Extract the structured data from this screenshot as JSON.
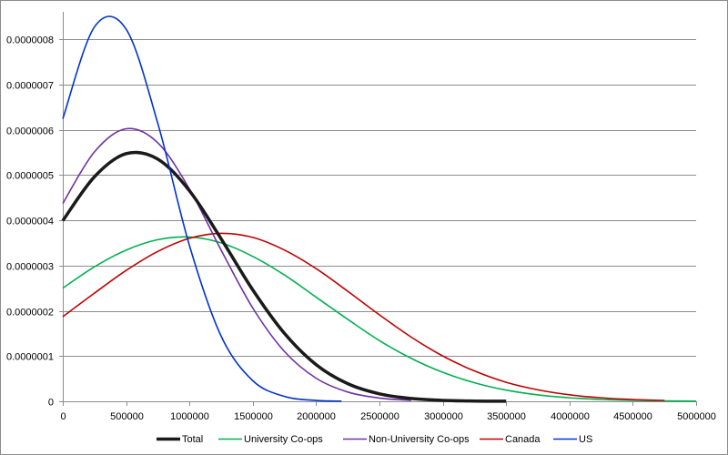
{
  "chart_data": {
    "type": "line",
    "title": "",
    "xlabel": "",
    "ylabel": "",
    "xlim": [
      0,
      5000000
    ],
    "ylim": [
      0,
      8e-07
    ],
    "x_ticks": [
      "0",
      "500000",
      "1000000",
      "1500000",
      "2000000",
      "2500000",
      "3000000",
      "3500000",
      "4000000",
      "4500000",
      "5000000"
    ],
    "y_ticks": [
      "0",
      "0.0000001",
      "0.0000002",
      "0.0000003",
      "0.0000004",
      "0.0000005",
      "0.0000006",
      "0.0000007",
      "0.0000008"
    ],
    "grid": "horizontal",
    "legend_position": "bottom",
    "series": [
      {
        "name": "Total",
        "color": "#1a1a1a",
        "x": [
          0,
          250000,
          500000,
          750000,
          1000000,
          1250000,
          1500000,
          1750000,
          2000000,
          2250000,
          2500000,
          2750000,
          3000000,
          3250000,
          3500000
        ],
        "y": [
          3.99e-07,
          4.96e-07,
          5.47e-07,
          5.35e-07,
          4.65e-07,
          3.59e-07,
          2.46e-07,
          1.5e-07,
          8.1e-08,
          3.89e-08,
          1.65e-08,
          6.3e-09,
          2.1e-09,
          6e-10,
          2e-10
        ]
      },
      {
        "name": "University Co-ops",
        "color": "#00b050",
        "x": [
          0,
          250000,
          500000,
          750000,
          1000000,
          1250000,
          1500000,
          1750000,
          2000000,
          2250000,
          2500000,
          2750000,
          3000000,
          3250000,
          3500000,
          3750000,
          4000000,
          4250000,
          4500000,
          4750000,
          5000000
        ],
        "y": [
          2.5e-07,
          2.97e-07,
          3.34e-07,
          3.57e-07,
          3.63e-07,
          3.5e-07,
          3.2e-07,
          2.79e-07,
          2.3e-07,
          1.81e-07,
          1.34e-07,
          9.5e-08,
          6.4e-08,
          4.1e-08,
          2.47e-08,
          1.42e-08,
          7.8e-09,
          4e-09,
          2e-09,
          9e-10,
          4e-10
        ]
      },
      {
        "name": "Non-University Co-ops",
        "color": "#7030a0",
        "x": [
          0,
          250000,
          500000,
          750000,
          1000000,
          1250000,
          1500000,
          1750000,
          2000000,
          2250000,
          2500000,
          2750000
        ],
        "y": [
          4.37e-07,
          5.51e-07,
          6.02e-07,
          5.71e-07,
          4.69e-07,
          3.34e-07,
          2.06e-07,
          1.1e-07,
          5.1e-08,
          2.05e-08,
          7.2e-09,
          2.2e-09
        ]
      },
      {
        "name": "Canada",
        "color": "#c00000",
        "x": [
          0,
          250000,
          500000,
          750000,
          1000000,
          1250000,
          1500000,
          1750000,
          2000000,
          2250000,
          2500000,
          2750000,
          3000000,
          3250000,
          3500000,
          3750000,
          4000000,
          4250000,
          4500000,
          4750000
        ],
        "y": [
          1.87e-07,
          2.39e-07,
          2.89e-07,
          3.31e-07,
          3.6e-07,
          3.71e-07,
          3.62e-07,
          3.34e-07,
          2.93e-07,
          2.43e-07,
          1.91e-07,
          1.42e-07,
          1e-07,
          6.7e-08,
          4.2e-08,
          2.54e-08,
          1.44e-08,
          7.8e-09,
          4e-09,
          1.9e-09
        ]
      },
      {
        "name": "US",
        "color": "#0033cc",
        "x": [
          0,
          250000,
          500000,
          750000,
          1000000,
          1250000,
          1500000,
          1750000,
          2000000,
          2200000
        ],
        "y": [
          6.24e-07,
          8.27e-07,
          8.22e-07,
          6.14e-07,
          3.44e-07,
          1.44e-07,
          4.55e-08,
          1.08e-08,
          1.9e-09,
          4e-10
        ]
      }
    ]
  }
}
